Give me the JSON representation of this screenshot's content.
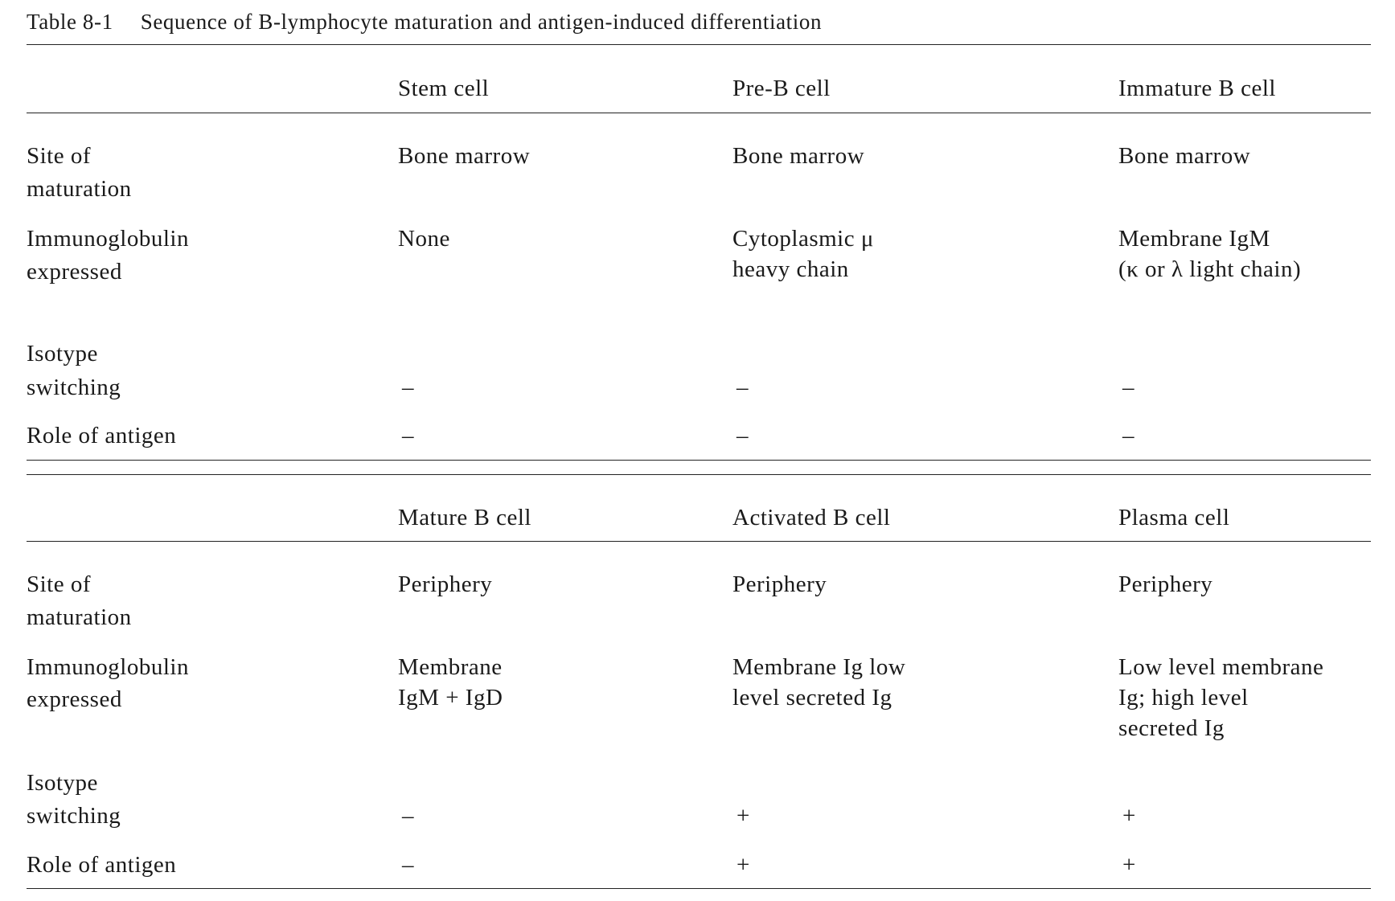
{
  "table": {
    "number": "Table 8-1",
    "caption": "Sequence of B-lymphocyte maturation and antigen-induced differentiation",
    "row_labels": [
      [
        "Site of",
        "maturation"
      ],
      [
        "Immunoglobulin",
        "expressed"
      ],
      [
        "Isotype",
        "switching"
      ],
      [
        "Role of antigen"
      ]
    ],
    "blocks": [
      {
        "columns": [
          "Stem cell",
          "Pre-B cell",
          "Immature B cell"
        ],
        "cells": [
          [
            [
              "Bone marrow"
            ],
            [
              "Bone marrow"
            ],
            [
              "Bone marrow"
            ]
          ],
          [
            [
              "None"
            ],
            [
              "Cytoplasmic μ",
              "heavy chain"
            ],
            [
              "Membrane IgM",
              "(κ or λ light chain)"
            ]
          ],
          [
            [
              "–"
            ],
            [
              "–"
            ],
            [
              "–"
            ]
          ],
          [
            [
              "–"
            ],
            [
              "–"
            ],
            [
              "–"
            ]
          ]
        ]
      },
      {
        "columns": [
          "Mature B cell",
          "Activated B cell",
          "Plasma cell"
        ],
        "cells": [
          [
            [
              "Periphery"
            ],
            [
              "Periphery"
            ],
            [
              "Periphery"
            ]
          ],
          [
            [
              "Membrane",
              "IgM + IgD"
            ],
            [
              "Membrane Ig low",
              "level secreted Ig"
            ],
            [
              "Low level membrane",
              "Ig; high level",
              "secreted Ig"
            ]
          ],
          [
            [
              "–"
            ],
            [
              "+"
            ],
            [
              "+"
            ]
          ],
          [
            [
              "–"
            ],
            [
              "+"
            ],
            [
              "+"
            ]
          ]
        ]
      }
    ]
  }
}
